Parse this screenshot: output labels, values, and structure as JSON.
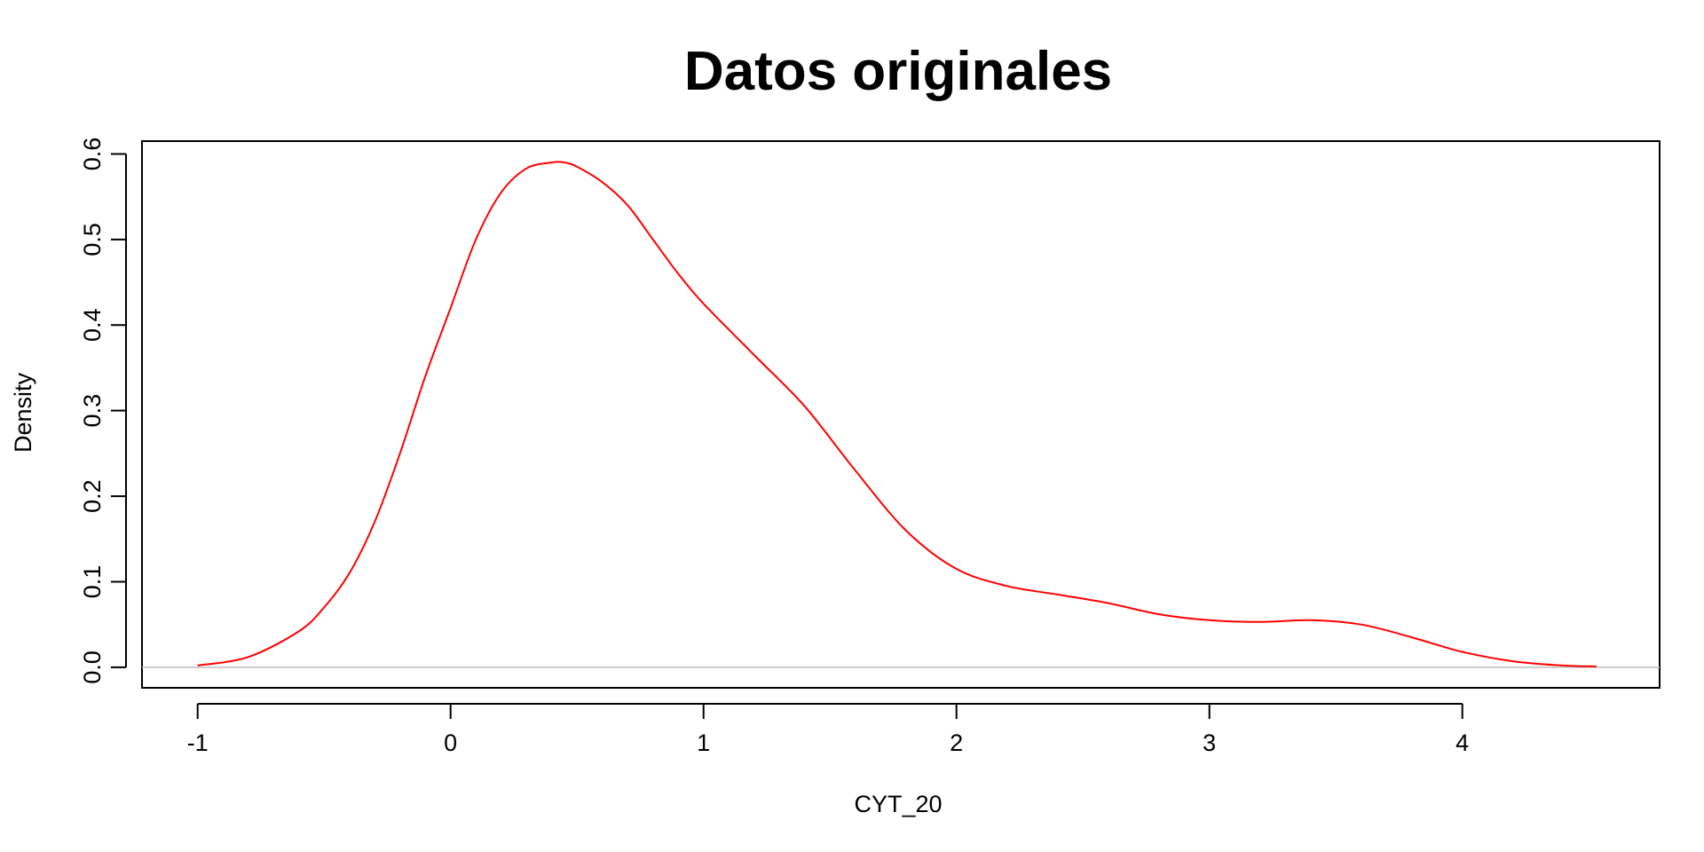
{
  "chart_data": {
    "type": "line",
    "title": "Datos originales",
    "xlabel": "CYT_20",
    "ylabel": "Density",
    "xlim": [
      -1.22,
      4.78
    ],
    "ylim": [
      -0.024,
      0.615
    ],
    "x_ticks": [
      -1,
      0,
      1,
      2,
      3,
      4
    ],
    "y_ticks": [
      0.0,
      0.1,
      0.2,
      0.3,
      0.4,
      0.5,
      0.6
    ],
    "y_tick_labels": [
      "0.0",
      "0.1",
      "0.2",
      "0.3",
      "0.4",
      "0.5",
      "0.6"
    ],
    "baseline": 0,
    "grid": false,
    "legend": "none",
    "series": [
      {
        "color": "#ff0000",
        "x": [
          -1.0,
          -0.8,
          -0.6,
          -0.5,
          -0.4,
          -0.3,
          -0.2,
          -0.1,
          0.0,
          0.1,
          0.2,
          0.3,
          0.4,
          0.45,
          0.5,
          0.6,
          0.7,
          0.8,
          0.9,
          1.0,
          1.2,
          1.4,
          1.6,
          1.8,
          2.0,
          2.2,
          2.4,
          2.6,
          2.8,
          3.0,
          3.2,
          3.4,
          3.6,
          3.8,
          4.0,
          4.2,
          4.4,
          4.53
        ],
        "y": [
          0.002,
          0.012,
          0.042,
          0.07,
          0.11,
          0.17,
          0.25,
          0.34,
          0.42,
          0.5,
          0.555,
          0.583,
          0.59,
          0.59,
          0.585,
          0.567,
          0.54,
          0.5,
          0.46,
          0.425,
          0.365,
          0.305,
          0.23,
          0.16,
          0.115,
          0.095,
          0.085,
          0.075,
          0.062,
          0.055,
          0.053,
          0.055,
          0.05,
          0.035,
          0.018,
          0.007,
          0.002,
          0.001
        ]
      }
    ]
  }
}
